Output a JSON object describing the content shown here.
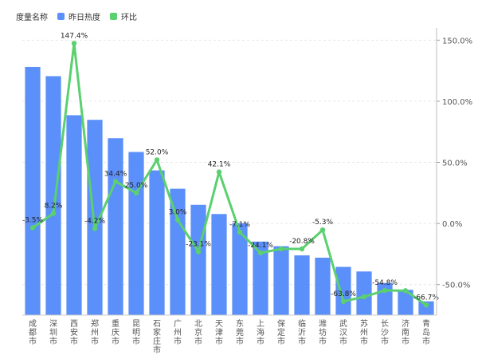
{
  "legend": {
    "title": "度量名称",
    "items": [
      {
        "label": "昨日热度",
        "color": "#5b8ff9"
      },
      {
        "label": "环比",
        "color": "#5ad06f"
      }
    ]
  },
  "chart_data": {
    "type": "bar",
    "categories": [
      "成都市",
      "深圳市",
      "西安市",
      "郑州市",
      "重庆市",
      "昆明市",
      "石家庄市",
      "广州市",
      "北京市",
      "天津市",
      "东莞市",
      "上海市",
      "保定市",
      "临沂市",
      "潍坊市",
      "武汉市",
      "苏州市",
      "长沙市",
      "济南市",
      "青岛市"
    ],
    "series": [
      {
        "name": "昨日热度",
        "type": "bar",
        "color": "#5b8ff9",
        "values": [
          100,
          96,
          79,
          77,
          69,
          63,
          55,
          47,
          40,
          36,
          32,
          24,
          22,
          18,
          17,
          13,
          11,
          6,
          3,
          -2
        ]
      },
      {
        "name": "环比",
        "type": "line",
        "color": "#5ad06f",
        "axis": "right",
        "values": [
          -3.5,
          8.2,
          147.4,
          -4.2,
          34.4,
          25.0,
          52.0,
          3.0,
          -23.1,
          42.1,
          -7.1,
          -24.1,
          -20.8,
          -20.8,
          -5.3,
          -63.8,
          -60.0,
          -54.8,
          -55.0,
          -66.7
        ],
        "labels": [
          "-3.5%",
          "8.2%",
          "147.4%",
          "-4.2%",
          "34.4%",
          "25.0%",
          "52.0%",
          "3.0%",
          "-23.1%",
          "42.1%",
          "-7.1%",
          "-24.1%",
          "",
          "-20.8%",
          "-5.3%",
          "-63.8%",
          "",
          "-54.8%",
          "",
          "-66.7%"
        ]
      }
    ],
    "y2_ticks": [
      "150.0%",
      "100.0%",
      "50.0%",
      "0.0%",
      "-50.0%"
    ],
    "y2_tick_values": [
      150,
      100,
      50,
      0,
      -50
    ],
    "y2lim": [
      -75,
      160
    ],
    "y2_unit": "%",
    "grid": true
  }
}
